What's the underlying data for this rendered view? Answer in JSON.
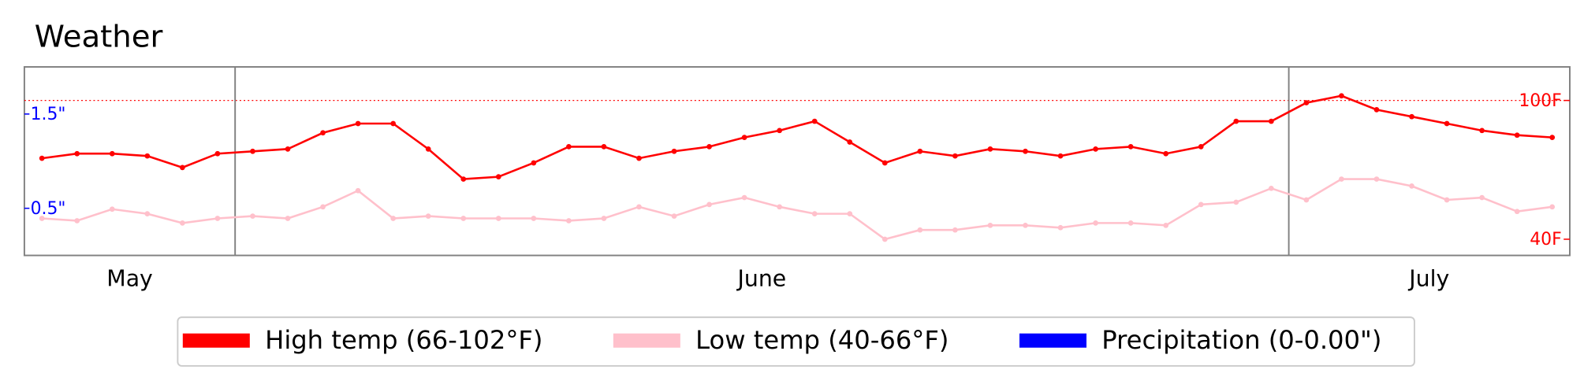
{
  "chart_data": {
    "type": "line",
    "title": "Weather",
    "categories": [
      "May",
      "May",
      "May",
      "May",
      "May",
      "May",
      "June",
      "June",
      "June",
      "June",
      "June",
      "June",
      "June",
      "June",
      "June",
      "June",
      "June",
      "June",
      "June",
      "June",
      "June",
      "June",
      "June",
      "June",
      "June",
      "June",
      "June",
      "June",
      "June",
      "June",
      "June",
      "June",
      "June",
      "June",
      "June",
      "June",
      "July",
      "July",
      "July",
      "July",
      "July",
      "July",
      "July",
      "July"
    ],
    "series": [
      {
        "name": "High temp (66-102°F)",
        "color": "#ff0000",
        "axis": "y",
        "values": [
          75,
          77,
          77,
          76,
          71,
          77,
          78,
          79,
          86,
          90,
          90,
          79,
          66,
          67,
          73,
          80,
          80,
          75,
          78,
          80,
          84,
          87,
          91,
          82,
          73,
          78,
          76,
          79,
          78,
          76,
          79,
          80,
          77,
          80,
          91,
          91,
          99,
          102,
          96,
          93,
          90,
          87,
          85,
          84
        ]
      },
      {
        "name": "Low temp (40-66°F)",
        "color": "#ffc0cb",
        "axis": "y",
        "values": [
          49,
          48,
          53,
          51,
          47,
          49,
          50,
          49,
          54,
          61,
          49,
          50,
          49,
          49,
          49,
          48,
          49,
          54,
          50,
          55,
          58,
          54,
          51,
          51,
          40,
          44,
          44,
          46,
          46,
          45,
          47,
          47,
          46,
          55,
          56,
          62,
          57,
          66,
          66,
          63,
          57,
          58,
          52,
          54
        ]
      },
      {
        "name": "Precipitation (0-0.00\")",
        "color": "#0000ff",
        "axis": "y2",
        "values": [
          0,
          0,
          0,
          0,
          0,
          0,
          0,
          0,
          0,
          0,
          0,
          0,
          0,
          0,
          0,
          0,
          0,
          0,
          0,
          0,
          0,
          0,
          0,
          0,
          0,
          0,
          0,
          0,
          0,
          0,
          0,
          0,
          0,
          0,
          0,
          0,
          0,
          0,
          0,
          0,
          0,
          0,
          0,
          0
        ]
      }
    ],
    "ylim": [
      33,
      114.5
    ],
    "yticks": [
      {
        "value": 40,
        "label": "40F"
      },
      {
        "value": 100,
        "label": "100F"
      }
    ],
    "reference_line": 100,
    "y2lim": [
      0,
      2
    ],
    "y2ticks": [
      {
        "value": 0.5,
        "label": "0.5\""
      },
      {
        "value": 1.5,
        "label": "1.5\""
      }
    ],
    "legend": "bottom"
  }
}
